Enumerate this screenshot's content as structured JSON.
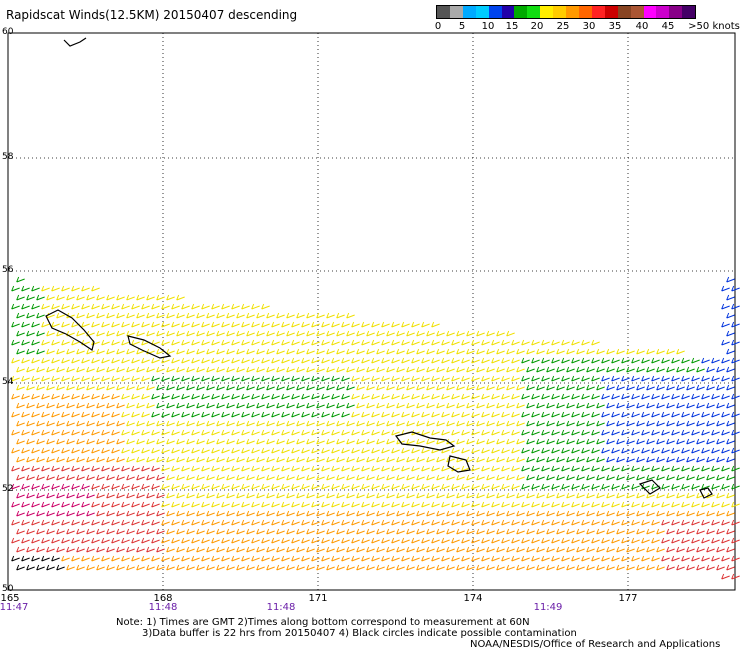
{
  "title": "Rapidscat Winds(12.5KM) 20150407 descending",
  "colorbar": {
    "colors": [
      "#555555",
      "#aaaaaa",
      "#00aaff",
      "#00ccff",
      "#0044ee",
      "#2200aa",
      "#00aa00",
      "#11dd11",
      "#ffee00",
      "#ffcc00",
      "#ff9900",
      "#ff6600",
      "#ff2222",
      "#cc0000",
      "#884422",
      "#aa5533",
      "#ff00ff",
      "#cc00cc",
      "#880088",
      "#440066"
    ],
    "labels": [
      "0",
      "5",
      "10",
      "15",
      "20",
      "25",
      "30",
      "35",
      "40",
      "45",
      ">50 knots"
    ]
  },
  "lat_labels": [
    "60",
    "58",
    "56",
    "54",
    "52",
    "50"
  ],
  "lon_labels": [
    "165",
    "168",
    "171",
    "174",
    "177"
  ],
  "time_labels": [
    "11:47",
    "11:48",
    "11:48",
    "11:49"
  ],
  "notes": [
    "Note: 1) Times are GMT 2)Times along bottom correspond to measurement at 60N",
    "3)Data buffer is 22 hrs from 20150407 4) Black circles indicate possible contamination",
    "NOAA/NESDIS/Office of Research and Applications"
  ],
  "wind_colors": {
    "calm": "#000000",
    "blue": "#0033dd",
    "green": "#009900",
    "yellow": "#f0e000",
    "orange": "#ff9900",
    "red": "#dd3333",
    "magenta": "#cc0066"
  }
}
